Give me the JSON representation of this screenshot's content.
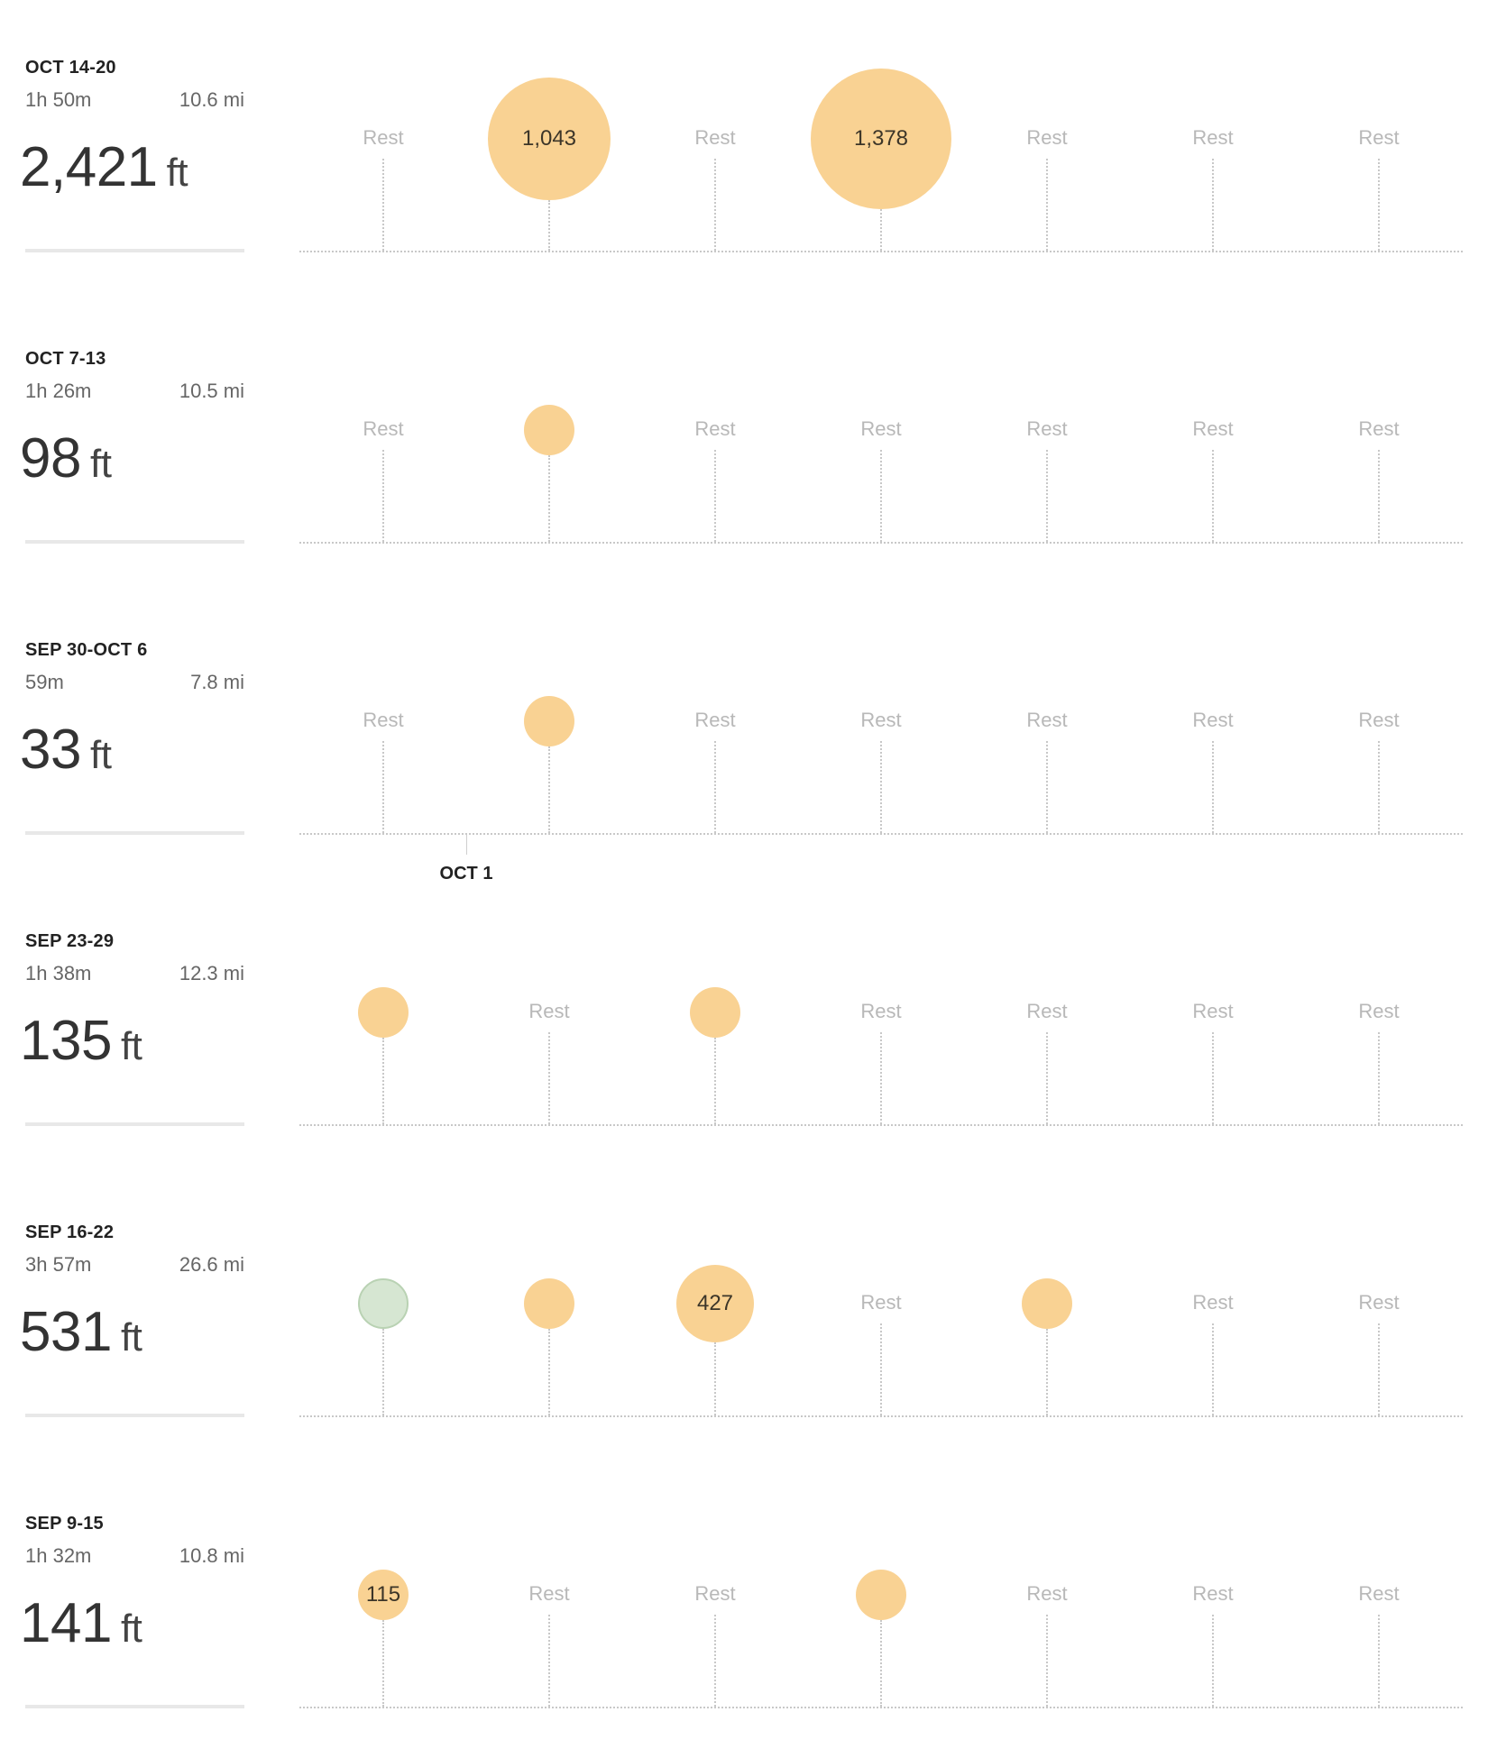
{
  "weeks": [
    {
      "title": "OCT 14-20",
      "duration": "1h 50m",
      "distance": "10.6 mi",
      "elevation_value": "2,421",
      "elevation_unit": "ft",
      "days": [
        {
          "rest": true,
          "rest_label": "Rest"
        },
        {
          "rest": false,
          "activity": "run",
          "elevation": 1043,
          "label": "1,043"
        },
        {
          "rest": true,
          "rest_label": "Rest"
        },
        {
          "rest": false,
          "activity": "run",
          "elevation": 1378,
          "label": "1,378"
        },
        {
          "rest": true,
          "rest_label": "Rest"
        },
        {
          "rest": true,
          "rest_label": "Rest"
        },
        {
          "rest": true,
          "rest_label": "Rest"
        }
      ]
    },
    {
      "title": "OCT 7-13",
      "duration": "1h 26m",
      "distance": "10.5 mi",
      "elevation_value": "98",
      "elevation_unit": "ft",
      "days": [
        {
          "rest": true,
          "rest_label": "Rest"
        },
        {
          "rest": false,
          "activity": "run",
          "elevation": 98,
          "label": ""
        },
        {
          "rest": true,
          "rest_label": "Rest"
        },
        {
          "rest": true,
          "rest_label": "Rest"
        },
        {
          "rest": true,
          "rest_label": "Rest"
        },
        {
          "rest": true,
          "rest_label": "Rest"
        },
        {
          "rest": true,
          "rest_label": "Rest"
        }
      ]
    },
    {
      "title": "SEP 30-OCT 6",
      "duration": "59m",
      "distance": "7.8 mi",
      "elevation_value": "33",
      "elevation_unit": "ft",
      "month_marker": "OCT 1",
      "days": [
        {
          "rest": true,
          "rest_label": "Rest"
        },
        {
          "rest": false,
          "activity": "run",
          "elevation": 33,
          "label": ""
        },
        {
          "rest": true,
          "rest_label": "Rest"
        },
        {
          "rest": true,
          "rest_label": "Rest"
        },
        {
          "rest": true,
          "rest_label": "Rest"
        },
        {
          "rest": true,
          "rest_label": "Rest"
        },
        {
          "rest": true,
          "rest_label": "Rest"
        }
      ]
    },
    {
      "title": "SEP 23-29",
      "duration": "1h 38m",
      "distance": "12.3 mi",
      "elevation_value": "135",
      "elevation_unit": "ft",
      "days": [
        {
          "rest": false,
          "activity": "run",
          "elevation": 68,
          "label": ""
        },
        {
          "rest": true,
          "rest_label": "Rest"
        },
        {
          "rest": false,
          "activity": "run",
          "elevation": 67,
          "label": ""
        },
        {
          "rest": true,
          "rest_label": "Rest"
        },
        {
          "rest": true,
          "rest_label": "Rest"
        },
        {
          "rest": true,
          "rest_label": "Rest"
        },
        {
          "rest": true,
          "rest_label": "Rest"
        }
      ]
    },
    {
      "title": "SEP 16-22",
      "duration": "3h 57m",
      "distance": "26.6 mi",
      "elevation_value": "531",
      "elevation_unit": "ft",
      "days": [
        {
          "rest": false,
          "activity": "other",
          "elevation": 0,
          "label": ""
        },
        {
          "rest": false,
          "activity": "run",
          "elevation": 52,
          "label": ""
        },
        {
          "rest": false,
          "activity": "run",
          "elevation": 427,
          "label": "427"
        },
        {
          "rest": true,
          "rest_label": "Rest"
        },
        {
          "rest": false,
          "activity": "run",
          "elevation": 52,
          "label": ""
        },
        {
          "rest": true,
          "rest_label": "Rest"
        },
        {
          "rest": true,
          "rest_label": "Rest"
        }
      ]
    },
    {
      "title": "SEP 9-15",
      "duration": "1h 32m",
      "distance": "10.8 mi",
      "elevation_value": "141",
      "elevation_unit": "ft",
      "days": [
        {
          "rest": false,
          "activity": "run",
          "elevation": 115,
          "label": "115"
        },
        {
          "rest": true,
          "rest_label": "Rest"
        },
        {
          "rest": true,
          "rest_label": "Rest"
        },
        {
          "rest": false,
          "activity": "run",
          "elevation": 26,
          "label": ""
        },
        {
          "rest": true,
          "rest_label": "Rest"
        },
        {
          "rest": true,
          "rest_label": "Rest"
        },
        {
          "rest": true,
          "rest_label": "Rest"
        }
      ]
    }
  ],
  "colors": {
    "run_bubble": "#f9d293",
    "other_bubble": "#d6e6d2",
    "rest_text": "#b8b8b8",
    "grid": "#c8c8c8"
  }
}
